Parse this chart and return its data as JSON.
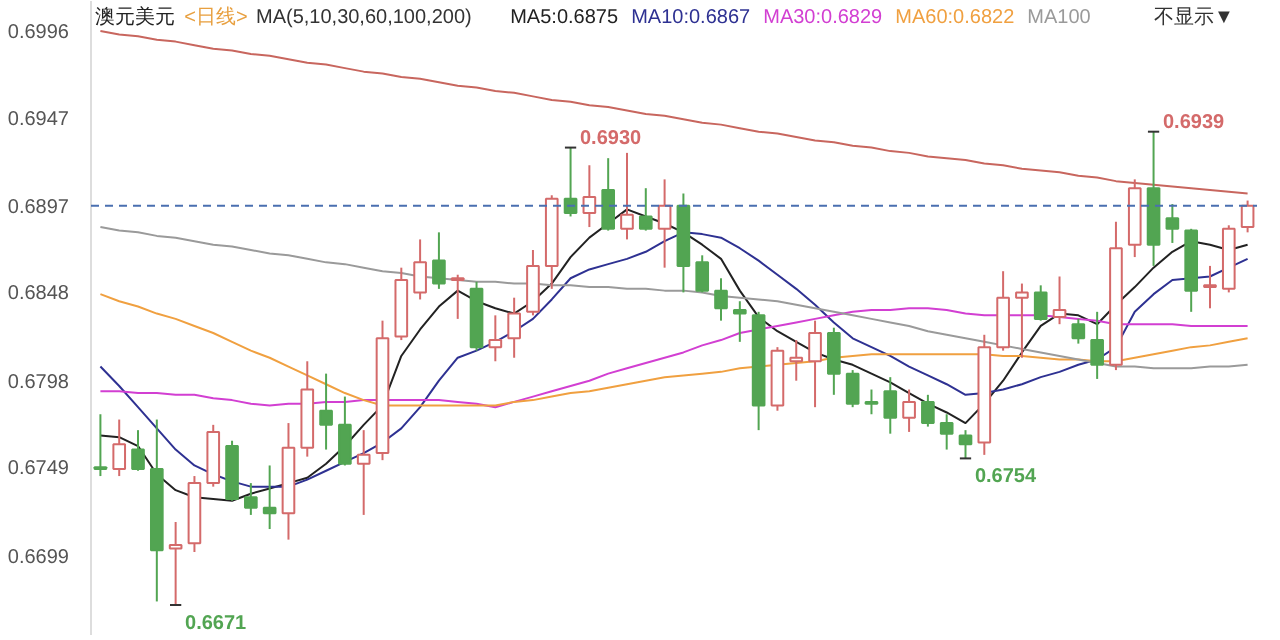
{
  "chart_data": {
    "type": "candlestick",
    "title": "澳元美元",
    "subtitle": "<日线>",
    "annotations": [
      "MA(5,10,30,60,100,200)",
      "不显示▼",
      "0.6930",
      "0.6939",
      "0.6671",
      "0.6754"
    ],
    "categories": [
      null,
      null,
      null,
      null,
      null,
      null,
      null,
      null,
      null,
      null,
      null,
      null,
      null,
      null,
      null,
      null,
      null,
      null,
      null,
      null,
      null,
      null,
      null,
      null,
      null,
      null,
      null,
      null,
      null,
      null,
      null,
      null,
      null,
      null,
      null,
      null,
      null,
      null,
      null,
      null,
      null,
      null,
      null,
      null,
      null,
      null,
      null,
      null,
      null,
      null,
      null,
      null,
      null,
      null,
      null,
      null,
      null,
      null,
      null,
      null,
      null,
      null
    ],
    "ohlc": [
      [
        0.6749,
        0.6779,
        0.6744,
        0.6748
      ],
      [
        0.6748,
        0.6776,
        0.6744,
        0.6762
      ],
      [
        0.6759,
        0.677,
        0.6747,
        0.6748
      ],
      [
        0.6748,
        0.6776,
        0.6673,
        0.6702
      ],
      [
        0.6703,
        0.6718,
        0.6671,
        0.6705
      ],
      [
        0.6706,
        0.6744,
        0.6701,
        0.674
      ],
      [
        0.674,
        0.6773,
        0.6738,
        0.6769
      ],
      [
        0.6761,
        0.6764,
        0.673,
        0.6731
      ],
      [
        0.6732,
        0.674,
        0.6722,
        0.6726
      ],
      [
        0.6726,
        0.675,
        0.6714,
        0.6723
      ],
      [
        0.6723,
        0.6774,
        0.6708,
        0.676
      ],
      [
        0.676,
        0.6809,
        0.6755,
        0.6793
      ],
      [
        0.6781,
        0.6802,
        0.6759,
        0.6773
      ],
      [
        0.6773,
        0.6789,
        0.675,
        0.6751
      ],
      [
        0.6751,
        0.677,
        0.6722,
        0.6756
      ],
      [
        0.6757,
        0.6832,
        0.6753,
        0.6822
      ],
      [
        0.6823,
        0.6862,
        0.6821,
        0.6855
      ],
      [
        0.6848,
        0.6878,
        0.6844,
        0.6865
      ],
      [
        0.6866,
        0.6882,
        0.685,
        0.6853
      ],
      [
        0.6855,
        0.6858,
        0.6833,
        0.6856
      ],
      [
        0.685,
        0.6854,
        0.6815,
        0.6817
      ],
      [
        0.6817,
        0.6835,
        0.6809,
        0.6821
      ],
      [
        0.6822,
        0.6845,
        0.6811,
        0.6836
      ],
      [
        0.6837,
        0.6872,
        0.6835,
        0.6863
      ],
      [
        0.6863,
        0.6903,
        0.685,
        0.6901
      ],
      [
        0.6901,
        0.693,
        0.6891,
        0.6893
      ],
      [
        0.6893,
        0.692,
        0.6885,
        0.6902
      ],
      [
        0.6906,
        0.6924,
        0.6883,
        0.6884
      ],
      [
        0.6884,
        0.6927,
        0.6878,
        0.6892
      ],
      [
        0.6891,
        0.6907,
        0.6883,
        0.6884
      ],
      [
        0.6884,
        0.6912,
        0.6862,
        0.6897
      ],
      [
        0.6897,
        0.6904,
        0.6848,
        0.6863
      ],
      [
        0.6865,
        0.6869,
        0.6848,
        0.6849
      ],
      [
        0.6849,
        0.6856,
        0.6832,
        0.6839
      ],
      [
        0.6838,
        0.6843,
        0.682,
        0.6836
      ],
      [
        0.6835,
        0.6837,
        0.677,
        0.6784
      ],
      [
        0.6784,
        0.6817,
        0.6781,
        0.6815
      ],
      [
        0.6809,
        0.6821,
        0.6798,
        0.6811
      ],
      [
        0.6809,
        0.6832,
        0.6783,
        0.6825
      ],
      [
        0.6825,
        0.6828,
        0.679,
        0.6802
      ],
      [
        0.6802,
        0.6804,
        0.6783,
        0.6785
      ],
      [
        0.6786,
        0.6793,
        0.6779,
        0.6785
      ],
      [
        0.6792,
        0.68,
        0.6768,
        0.6777
      ],
      [
        0.6777,
        0.6793,
        0.6769,
        0.6786
      ],
      [
        0.6786,
        0.679,
        0.6772,
        0.6774
      ],
      [
        0.6774,
        0.6779,
        0.6759,
        0.6768
      ],
      [
        0.6767,
        0.677,
        0.6754,
        0.6762
      ],
      [
        0.6763,
        0.6824,
        0.6756,
        0.6817
      ],
      [
        0.6817,
        0.686,
        0.6815,
        0.6845
      ],
      [
        0.6845,
        0.6853,
        0.6811,
        0.6848
      ],
      [
        0.6848,
        0.6852,
        0.6832,
        0.6833
      ],
      [
        0.6834,
        0.6857,
        0.683,
        0.6838
      ],
      [
        0.683,
        0.6833,
        0.6819,
        0.6822
      ],
      [
        0.6821,
        0.6837,
        0.6799,
        0.6807
      ],
      [
        0.6807,
        0.6888,
        0.6804,
        0.6873
      ],
      [
        0.6875,
        0.6912,
        0.6868,
        0.6907
      ],
      [
        0.6907,
        0.6939,
        0.6863,
        0.6875
      ],
      [
        0.689,
        0.6898,
        0.6876,
        0.6884
      ],
      [
        0.6883,
        0.6884,
        0.6837,
        0.6849
      ],
      [
        0.6851,
        0.6863,
        0.6839,
        0.6852
      ],
      [
        0.685,
        0.6886,
        0.6848,
        0.6884
      ],
      [
        0.6885,
        0.69,
        0.6882,
        0.6897
      ]
    ],
    "colors": [
      "#52a552",
      "#d46a6a",
      "#52a552",
      "#52a552",
      "#d46a6a",
      "#d46a6a",
      "#d46a6a",
      "#52a552",
      "#52a552",
      "#52a552",
      "#d46a6a",
      "#d46a6a",
      "#52a552",
      "#52a552",
      "#d46a6a",
      "#d46a6a",
      "#d46a6a",
      "#d46a6a",
      "#52a552",
      "#d46a6a",
      "#52a552",
      "#d46a6a",
      "#d46a6a",
      "#d46a6a",
      "#d46a6a",
      "#52a552",
      "#d46a6a",
      "#52a552",
      "#d46a6a",
      "#52a552",
      "#d46a6a",
      "#52a552",
      "#52a552",
      "#52a552",
      "#52a552",
      "#52a552",
      "#d46a6a",
      "#d46a6a",
      "#d46a6a",
      "#52a552",
      "#52a552",
      "#52a552",
      "#52a552",
      "#d46a6a",
      "#52a552",
      "#52a552",
      "#52a552",
      "#d46a6a",
      "#d46a6a",
      "#d46a6a",
      "#52a552",
      "#d46a6a",
      "#52a552",
      "#52a552",
      "#d46a6a",
      "#d46a6a",
      "#52a552",
      "#52a552",
      "#52a552",
      "#d46a6a",
      "#d46a6a",
      "#d46a6a"
    ],
    "series": [
      {
        "type": "line",
        "name": "MA5:0.6875",
        "color": "#222222",
        "values": [
          0.6767,
          0.6766,
          0.6761,
          0.6745,
          0.6736,
          0.6732,
          0.6731,
          0.673,
          0.6734,
          0.6737,
          0.674,
          0.6743,
          0.6751,
          0.6761,
          0.6773,
          0.6784,
          0.6812,
          0.6827,
          0.684,
          0.6849,
          0.6843,
          0.6839,
          0.6836,
          0.6843,
          0.6853,
          0.6868,
          0.6879,
          0.6887,
          0.6895,
          0.6891,
          0.6887,
          0.6882,
          0.6875,
          0.6867,
          0.6849,
          0.6834,
          0.6826,
          0.682,
          0.6814,
          0.681,
          0.6807,
          0.6802,
          0.6797,
          0.6791,
          0.6785,
          0.678,
          0.6774,
          0.6785,
          0.6798,
          0.6814,
          0.6829,
          0.6836,
          0.6835,
          0.683,
          0.6841,
          0.6851,
          0.6862,
          0.6871,
          0.6877,
          0.6875,
          0.6872,
          0.6875
        ]
      },
      {
        "type": "line",
        "name": "MA10:0.6867",
        "color": "#2e3192",
        "values": [
          0.6806,
          0.6795,
          0.6783,
          0.6771,
          0.6759,
          0.675,
          0.6745,
          0.6741,
          0.6738,
          0.6738,
          0.6738,
          0.6742,
          0.6747,
          0.6752,
          0.6757,
          0.6763,
          0.6771,
          0.6783,
          0.6798,
          0.6811,
          0.6815,
          0.682,
          0.6826,
          0.6833,
          0.6844,
          0.6856,
          0.6861,
          0.6864,
          0.6867,
          0.6871,
          0.6877,
          0.6882,
          0.6881,
          0.6879,
          0.6873,
          0.6866,
          0.6858,
          0.685,
          0.6841,
          0.6831,
          0.6822,
          0.6817,
          0.6812,
          0.6806,
          0.6801,
          0.6796,
          0.679,
          0.6791,
          0.6793,
          0.6796,
          0.68,
          0.6803,
          0.6807,
          0.681,
          0.6817,
          0.6837,
          0.6847,
          0.6855,
          0.6856,
          0.6857,
          0.6862,
          0.6867
        ]
      },
      {
        "type": "line",
        "name": "MA30:0.6829",
        "color": "#d23fd2",
        "values": [
          0.6792,
          0.6792,
          0.6791,
          0.6791,
          0.679,
          0.679,
          0.6788,
          0.6787,
          0.6785,
          0.6784,
          0.6785,
          0.6785,
          0.6786,
          0.6786,
          0.6787,
          0.6787,
          0.6787,
          0.6787,
          0.6787,
          0.6786,
          0.6785,
          0.6783,
          0.6786,
          0.6789,
          0.6792,
          0.6795,
          0.6798,
          0.6802,
          0.6805,
          0.6808,
          0.6811,
          0.6814,
          0.6818,
          0.6821,
          0.6825,
          0.6827,
          0.6829,
          0.6831,
          0.6833,
          0.6835,
          0.6837,
          0.6838,
          0.6838,
          0.6839,
          0.6839,
          0.6838,
          0.6836,
          0.6835,
          0.6835,
          0.6835,
          0.6835,
          0.6834,
          0.6833,
          0.6832,
          0.683,
          0.683,
          0.683,
          0.683,
          0.6829,
          0.6829,
          0.6829,
          0.6829
        ]
      },
      {
        "type": "line",
        "name": "MA60:0.6822",
        "color": "#f0a040",
        "values": [
          0.6847,
          0.6843,
          0.684,
          0.6836,
          0.6833,
          0.6829,
          0.6825,
          0.682,
          0.6815,
          0.6811,
          0.6806,
          0.6801,
          0.6796,
          0.6791,
          0.6787,
          0.6784,
          0.6784,
          0.6784,
          0.6784,
          0.6784,
          0.6784,
          0.6784,
          0.6786,
          0.6787,
          0.6789,
          0.6791,
          0.6792,
          0.6794,
          0.6796,
          0.6798,
          0.68,
          0.6801,
          0.6802,
          0.6803,
          0.6805,
          0.6806,
          0.6807,
          0.6808,
          0.6809,
          0.6811,
          0.6812,
          0.6813,
          0.6813,
          0.6813,
          0.6813,
          0.6813,
          0.6813,
          0.6813,
          0.6812,
          0.6812,
          0.6811,
          0.681,
          0.681,
          0.6809,
          0.6809,
          0.6811,
          0.6813,
          0.6815,
          0.6817,
          0.6818,
          0.682,
          0.6822
        ]
      },
      {
        "type": "line",
        "name": "MA100",
        "color": "#9a9a9a",
        "values": [
          0.6885,
          0.6883,
          0.6882,
          0.688,
          0.6879,
          0.6877,
          0.6875,
          0.6874,
          0.6872,
          0.687,
          0.6869,
          0.6867,
          0.6865,
          0.6864,
          0.6862,
          0.686,
          0.6859,
          0.6857,
          0.6856,
          0.6855,
          0.6854,
          0.6854,
          0.6853,
          0.6853,
          0.6852,
          0.6852,
          0.6851,
          0.6851,
          0.685,
          0.685,
          0.6849,
          0.6849,
          0.6848,
          0.6846,
          0.6845,
          0.6844,
          0.6843,
          0.6841,
          0.6839,
          0.6837,
          0.6835,
          0.6833,
          0.6831,
          0.6829,
          0.6826,
          0.6824,
          0.6822,
          0.682,
          0.6818,
          0.6816,
          0.6814,
          0.6812,
          0.681,
          0.6808,
          0.6806,
          0.6806,
          0.6805,
          0.6805,
          0.6805,
          0.6806,
          0.6806,
          0.6807
        ]
      },
      {
        "type": "line",
        "color": "#c8665e",
        "values": [
          0.6996,
          0.6994,
          0.6993,
          0.6991,
          0.699,
          0.6988,
          0.6986,
          0.6985,
          0.6983,
          0.6982,
          0.698,
          0.6978,
          0.6977,
          0.6975,
          0.6973,
          0.6972,
          0.697,
          0.6969,
          0.6967,
          0.6965,
          0.6964,
          0.6962,
          0.6961,
          0.6959,
          0.6957,
          0.6956,
          0.6954,
          0.6953,
          0.6951,
          0.6949,
          0.6948,
          0.6946,
          0.6944,
          0.6943,
          0.6941,
          0.6939,
          0.6938,
          0.6936,
          0.6934,
          0.6933,
          0.6931,
          0.693,
          0.6928,
          0.6927,
          0.6925,
          0.6924,
          0.6923,
          0.6921,
          0.692,
          0.6918,
          0.6917,
          0.6916,
          0.6914,
          0.6913,
          0.6911,
          0.691,
          0.6909,
          0.6908,
          0.6907,
          0.6906,
          0.6905,
          0.6904
        ]
      }
    ],
    "ref_lines": [
      {
        "axis": "y",
        "value": 0.6897,
        "color": "#4a6fb0",
        "line_style": "dashed"
      }
    ],
    "ylim": [
      0.6654,
      0.7013
    ],
    "yticks": [
      0.6996,
      0.6947,
      0.6897,
      0.6848,
      0.6798,
      0.6749,
      0.6699
    ],
    "legend": "top"
  }
}
